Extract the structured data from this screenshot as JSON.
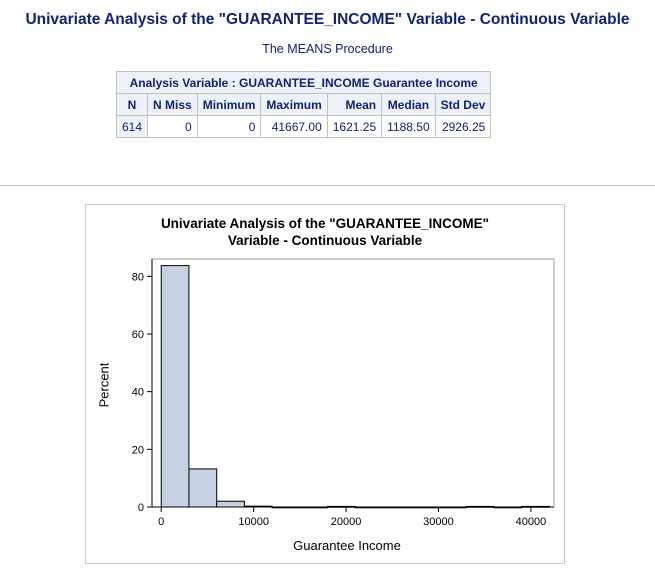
{
  "page": {
    "main_title": "Univariate Analysis of the \"GUARANTEE_INCOME\" Variable - Continuous Variable",
    "proc_title": "The MEANS Procedure"
  },
  "means_table": {
    "analysis_header": "Analysis Variable : GUARANTEE_INCOME Guarantee Income",
    "columns": [
      "N",
      "N Miss",
      "Minimum",
      "Maximum",
      "Mean",
      "Median",
      "Std Dev"
    ],
    "row": [
      "614",
      "0",
      "0",
      "41667.00",
      "1621.25",
      "1188.50",
      "2926.25"
    ]
  },
  "chart_data": {
    "type": "bar",
    "title_line1": "Univariate Analysis of the \"GUARANTEE_INCOME\"",
    "title_line2": "Variable - Continuous Variable",
    "xlabel": "Guarantee Income",
    "ylabel": "Percent",
    "bin_width": 3000,
    "bin_start": 0,
    "values": [
      83.7,
      13.2,
      2.0,
      0.3,
      0,
      0,
      0.2,
      0,
      0,
      0,
      0,
      0.2,
      0,
      0.2
    ],
    "xlim": [
      -1000,
      42500
    ],
    "ylim": [
      0,
      86
    ],
    "x_ticks": [
      0,
      10000,
      20000,
      30000,
      40000
    ],
    "x_tick_labels": [
      "0",
      "10000",
      "20000",
      "30000",
      "40000"
    ],
    "y_ticks": [
      0,
      20,
      40,
      60,
      80
    ],
    "y_tick_labels": [
      "0",
      "20",
      "40",
      "60",
      "80"
    ],
    "bar_fill": "#c6d2e4",
    "bar_stroke": "#000000",
    "grid": false
  }
}
